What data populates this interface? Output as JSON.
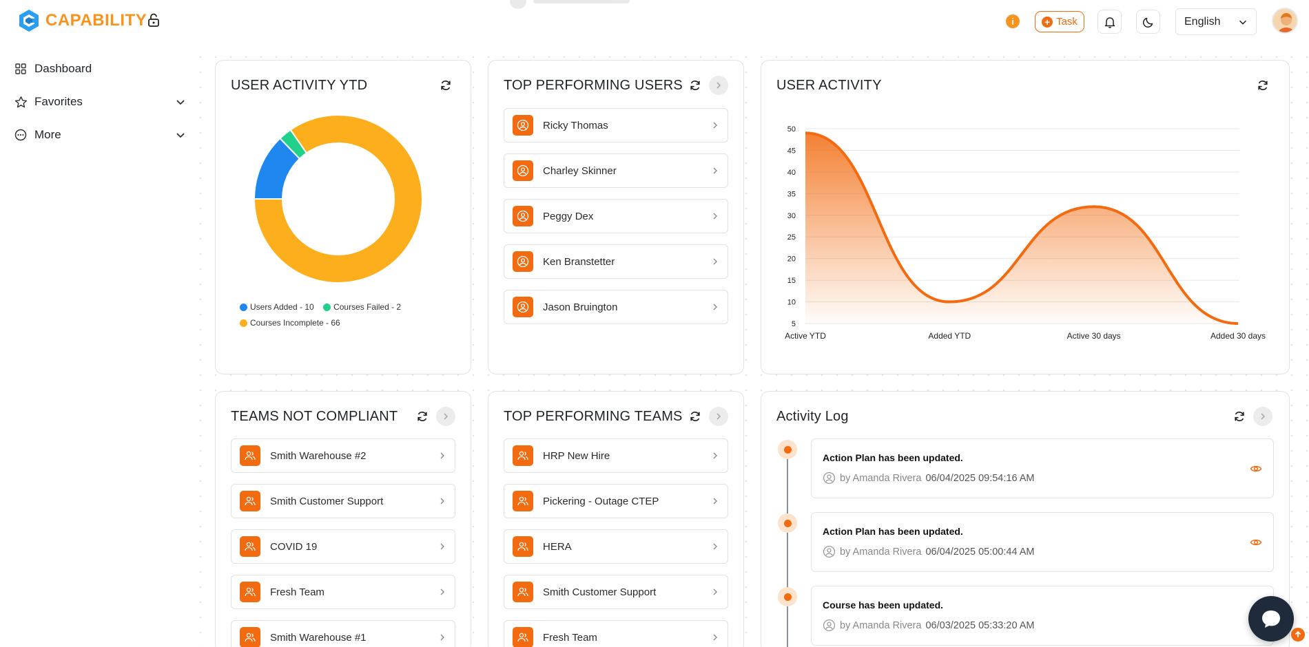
{
  "brand": {
    "name": "CAPABILITY",
    "color": "#f7931e"
  },
  "sidebar": {
    "items": [
      {
        "label": "Dashboard",
        "icon": "grid-icon"
      },
      {
        "label": "Favorites",
        "icon": "star-icon"
      },
      {
        "label": "More",
        "icon": "dots-circle-icon"
      }
    ]
  },
  "topbar": {
    "info": "i",
    "task_label": "Task",
    "language": "English"
  },
  "cards": {
    "user_activity_ytd": {
      "title": "USER ACTIVITY YTD",
      "legend": [
        {
          "label": "Users Added - 10",
          "color": "#1e88f0"
        },
        {
          "label": "Courses Failed - 2",
          "color": "#1fd18b"
        },
        {
          "label": "Courses Incomplete - 66",
          "color": "#fdae1c"
        }
      ]
    },
    "top_users": {
      "title": "TOP PERFORMING USERS",
      "items": [
        "Ricky Thomas",
        "Charley Skinner",
        "Peggy Dex",
        "Ken Branstetter",
        "Jason Bruington"
      ]
    },
    "user_activity": {
      "title": "USER ACTIVITY"
    },
    "teams_not_compliant": {
      "title": "TEAMS NOT COMPLIANT",
      "items": [
        "Smith Warehouse #2",
        "Smith Customer Support",
        "COVID 19",
        "Fresh Team",
        "Smith Warehouse #1"
      ]
    },
    "top_teams": {
      "title": "TOP PERFORMING TEAMS",
      "items": [
        "HRP New Hire",
        "Pickering - Outage CTEP",
        "HERA",
        "Smith Customer Support",
        "Fresh Team"
      ]
    },
    "activity_log": {
      "title": "Activity Log",
      "entries": [
        {
          "title": "Action Plan has been updated.",
          "by": "by Amanda Rivera",
          "time": "06/04/2025 09:54:16 AM"
        },
        {
          "title": "Action Plan has been updated.",
          "by": "by Amanda Rivera",
          "time": "06/04/2025 05:00:44 AM"
        },
        {
          "title": "Course has been updated.",
          "by": "by Amanda Rivera",
          "time": "06/03/2025 05:33:20 AM"
        }
      ]
    }
  },
  "chart_data": [
    {
      "type": "pie",
      "variant": "donut",
      "labels": [
        "Users Added",
        "Courses Failed",
        "Courses Incomplete"
      ],
      "values": [
        10,
        2,
        66
      ],
      "colors": [
        "#1e88f0",
        "#1fd18b",
        "#fdae1c"
      ],
      "legend": "bottom-left"
    },
    {
      "type": "area",
      "categories": [
        "Active YTD",
        "Added YTD",
        "Active 30 days",
        "Added 30 days"
      ],
      "values": [
        49,
        10,
        32,
        5
      ],
      "ylim": [
        5,
        50
      ],
      "yticks": [
        5,
        10,
        15,
        20,
        25,
        30,
        35,
        40,
        45,
        50
      ],
      "color": "#f26b10",
      "grid": true
    }
  ]
}
